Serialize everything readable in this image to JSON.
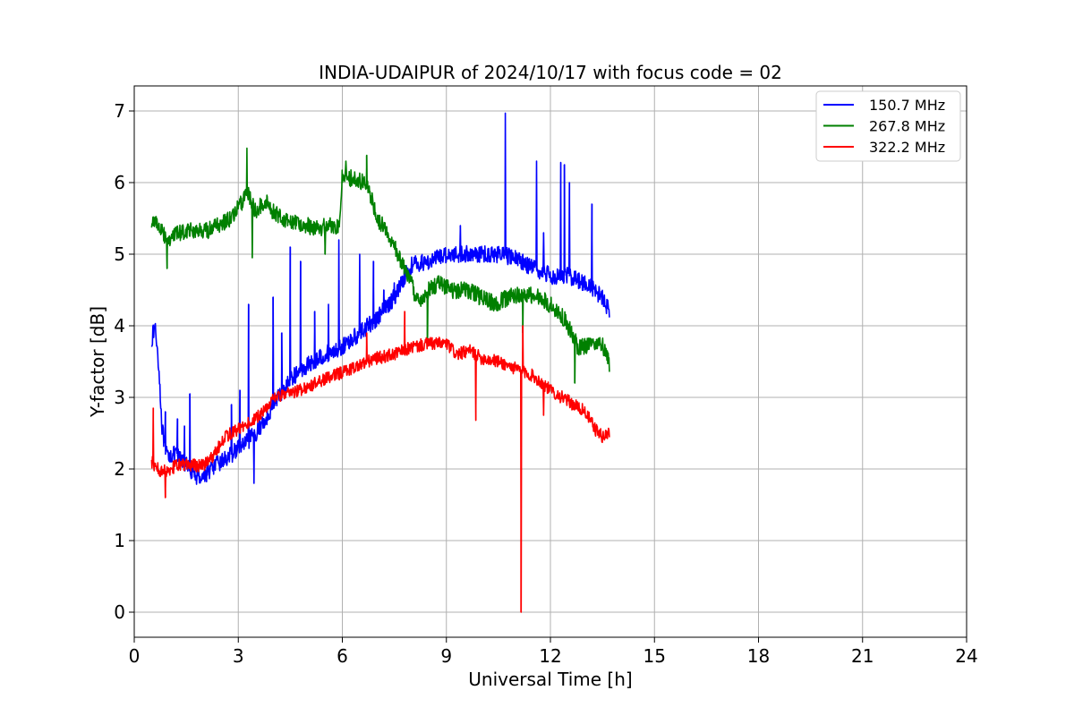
{
  "chart_data": {
    "type": "line",
    "title": "INDIA-UDAIPUR of 2024/10/17 with focus code = 02",
    "xlabel": "Universal Time [h]",
    "ylabel": "Y-factor [dB]",
    "xlim": [
      0,
      24
    ],
    "ylim": [
      -0.35,
      7.35
    ],
    "xticks": [
      0,
      3,
      6,
      9,
      12,
      15,
      18,
      21,
      24
    ],
    "yticks": [
      0,
      1,
      2,
      3,
      4,
      5,
      6,
      7
    ],
    "grid": true,
    "legend_position": "top-right",
    "series": [
      {
        "name": "150.7 MHz",
        "color": "#0000ff",
        "points": [
          [
            0.5,
            3.8
          ],
          [
            0.6,
            4.0
          ],
          [
            0.7,
            3.5
          ],
          [
            0.8,
            2.6
          ],
          [
            0.9,
            2.2
          ],
          [
            1.0,
            2.2
          ],
          [
            1.2,
            2.2
          ],
          [
            1.4,
            2.1
          ],
          [
            1.6,
            2.0
          ],
          [
            1.8,
            1.9
          ],
          [
            2.0,
            1.9
          ],
          [
            2.2,
            2.0
          ],
          [
            2.5,
            2.1
          ],
          [
            2.8,
            2.2
          ],
          [
            3.0,
            2.3
          ],
          [
            3.2,
            2.35
          ],
          [
            3.5,
            2.5
          ],
          [
            3.8,
            2.7
          ],
          [
            4.0,
            2.9
          ],
          [
            4.3,
            3.1
          ],
          [
            4.6,
            3.3
          ],
          [
            5.0,
            3.45
          ],
          [
            5.5,
            3.6
          ],
          [
            6.0,
            3.7
          ],
          [
            6.5,
            3.9
          ],
          [
            7.0,
            4.1
          ],
          [
            7.5,
            4.4
          ],
          [
            7.8,
            4.7
          ],
          [
            8.0,
            4.85
          ],
          [
            8.5,
            4.9
          ],
          [
            9.0,
            5.0
          ],
          [
            9.5,
            5.0
          ],
          [
            10.0,
            5.0
          ],
          [
            10.5,
            5.0
          ],
          [
            11.0,
            4.95
          ],
          [
            11.5,
            4.8
          ],
          [
            12.0,
            4.7
          ],
          [
            12.5,
            4.7
          ],
          [
            13.0,
            4.6
          ],
          [
            13.5,
            4.4
          ],
          [
            13.7,
            4.2
          ]
        ],
        "spikes": [
          [
            0.9,
            2.8
          ],
          [
            1.25,
            2.7
          ],
          [
            1.45,
            2.6
          ],
          [
            1.6,
            2.7
          ],
          [
            1.6,
            3.05
          ],
          [
            2.8,
            2.9
          ],
          [
            3.05,
            3.1
          ],
          [
            3.3,
            4.3
          ],
          [
            3.45,
            1.8
          ],
          [
            4.0,
            4.4
          ],
          [
            4.25,
            3.9
          ],
          [
            4.5,
            5.1
          ],
          [
            4.8,
            4.9
          ],
          [
            5.2,
            4.2
          ],
          [
            5.6,
            4.3
          ],
          [
            5.9,
            5.2
          ],
          [
            6.5,
            5.0
          ],
          [
            6.9,
            4.9
          ],
          [
            7.2,
            4.5
          ],
          [
            7.5,
            4.6
          ],
          [
            9.4,
            5.4
          ],
          [
            10.7,
            6.97
          ],
          [
            11.2,
            5.0
          ],
          [
            11.6,
            6.3
          ],
          [
            11.8,
            5.3
          ],
          [
            12.3,
            6.28
          ],
          [
            12.4,
            6.25
          ],
          [
            12.55,
            6.0
          ],
          [
            13.2,
            5.7
          ]
        ]
      },
      {
        "name": "267.8 MHz",
        "color": "#008000",
        "points": [
          [
            0.5,
            5.4
          ],
          [
            0.6,
            5.5
          ],
          [
            0.8,
            5.3
          ],
          [
            1.0,
            5.2
          ],
          [
            1.3,
            5.3
          ],
          [
            1.6,
            5.35
          ],
          [
            2.0,
            5.3
          ],
          [
            2.4,
            5.4
          ],
          [
            2.8,
            5.5
          ],
          [
            3.0,
            5.65
          ],
          [
            3.3,
            5.85
          ],
          [
            3.5,
            5.6
          ],
          [
            3.8,
            5.75
          ],
          [
            4.0,
            5.6
          ],
          [
            4.3,
            5.5
          ],
          [
            4.6,
            5.45
          ],
          [
            5.0,
            5.4
          ],
          [
            5.3,
            5.35
          ],
          [
            5.6,
            5.4
          ],
          [
            5.9,
            5.4
          ],
          [
            6.0,
            6.1
          ],
          [
            6.3,
            6.05
          ],
          [
            6.6,
            6.0
          ],
          [
            6.8,
            5.85
          ],
          [
            7.0,
            5.5
          ],
          [
            7.3,
            5.3
          ],
          [
            7.6,
            5.0
          ],
          [
            7.9,
            4.7
          ],
          [
            8.2,
            4.3
          ],
          [
            8.5,
            4.5
          ],
          [
            8.8,
            4.6
          ],
          [
            9.2,
            4.5
          ],
          [
            9.6,
            4.5
          ],
          [
            10.0,
            4.4
          ],
          [
            10.4,
            4.3
          ],
          [
            10.8,
            4.4
          ],
          [
            11.2,
            4.45
          ],
          [
            11.6,
            4.4
          ],
          [
            12.0,
            4.3
          ],
          [
            12.4,
            4.1
          ],
          [
            12.8,
            3.7
          ],
          [
            13.2,
            3.75
          ],
          [
            13.5,
            3.75
          ],
          [
            13.7,
            3.45
          ]
        ],
        "spikes": [
          [
            0.95,
            4.8
          ],
          [
            3.25,
            6.48
          ],
          [
            3.4,
            4.95
          ],
          [
            5.5,
            5.0
          ],
          [
            6.1,
            6.3
          ],
          [
            6.7,
            6.38
          ],
          [
            8.45,
            3.8
          ],
          [
            11.2,
            3.9
          ],
          [
            12.7,
            3.2
          ]
        ]
      },
      {
        "name": "322.2 MHz",
        "color": "#ff0000",
        "points": [
          [
            0.5,
            2.1
          ],
          [
            0.6,
            2.05
          ],
          [
            0.8,
            1.95
          ],
          [
            1.0,
            2.0
          ],
          [
            1.3,
            2.05
          ],
          [
            1.6,
            2.05
          ],
          [
            2.0,
            2.05
          ],
          [
            2.3,
            2.2
          ],
          [
            2.6,
            2.45
          ],
          [
            3.0,
            2.55
          ],
          [
            3.5,
            2.7
          ],
          [
            3.8,
            2.85
          ],
          [
            4.0,
            3.0
          ],
          [
            4.5,
            3.05
          ],
          [
            5.0,
            3.15
          ],
          [
            5.5,
            3.25
          ],
          [
            6.0,
            3.35
          ],
          [
            6.5,
            3.45
          ],
          [
            7.0,
            3.55
          ],
          [
            7.5,
            3.6
          ],
          [
            8.0,
            3.7
          ],
          [
            8.5,
            3.75
          ],
          [
            9.0,
            3.75
          ],
          [
            9.3,
            3.6
          ],
          [
            9.7,
            3.65
          ],
          [
            10.0,
            3.55
          ],
          [
            10.5,
            3.5
          ],
          [
            11.0,
            3.4
          ],
          [
            11.5,
            3.3
          ],
          [
            12.0,
            3.1
          ],
          [
            12.5,
            2.95
          ],
          [
            13.0,
            2.8
          ],
          [
            13.3,
            2.55
          ],
          [
            13.5,
            2.45
          ],
          [
            13.7,
            2.5
          ]
        ],
        "spikes": [
          [
            0.55,
            2.85
          ],
          [
            0.9,
            1.6
          ],
          [
            6.7,
            3.9
          ],
          [
            7.8,
            4.2
          ],
          [
            9.85,
            2.68
          ],
          [
            11.15,
            0.0
          ],
          [
            11.2,
            4.0
          ],
          [
            11.8,
            2.75
          ]
        ]
      }
    ]
  }
}
